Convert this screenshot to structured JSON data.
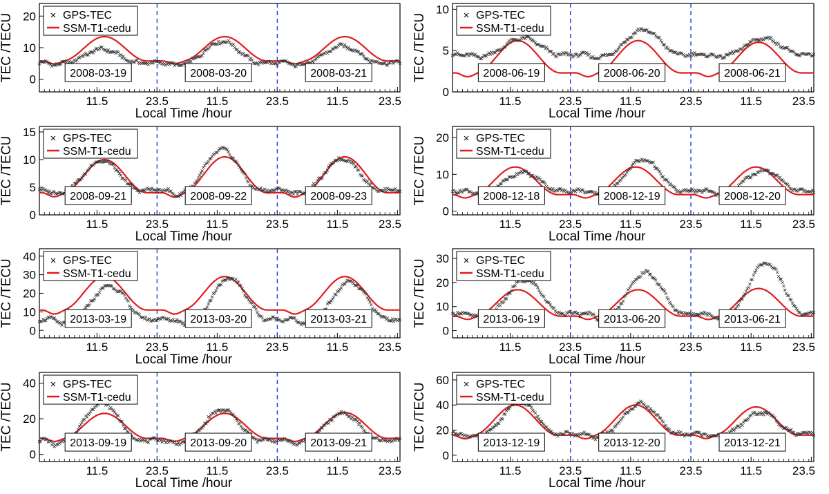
{
  "figure": {
    "series_styles": {
      "gps_color": "#333333",
      "ssm_color": "#e41a1c",
      "divider_color": "#1f3fd6"
    }
  },
  "chart_data": [
    {
      "type": "line",
      "xlabel": "Local Time /hour",
      "ylabel": "TEC /TECU",
      "yticks": [
        0,
        10,
        20
      ],
      "ylim": [
        -4,
        24
      ],
      "xticks": [
        "11.5",
        "23.5",
        "11.5",
        "23.5",
        "11.5",
        "23.5"
      ],
      "xlim": [
        0,
        72
      ],
      "grid": false,
      "legend": "top-left",
      "legend_entries": [
        "GPS-TEC",
        "SSM-T1-cedu"
      ],
      "dates": [
        "2008-03-19",
        "2008-03-20",
        "2008-03-21"
      ],
      "series": [
        {
          "name": "GPS-TEC",
          "kind": "marker-x",
          "base": 5.2,
          "daily_peak": [
            9.5,
            12.0,
            10.5
          ],
          "peak_hour": 12.5
        },
        {
          "name": "SSM-T1-cedu",
          "kind": "line",
          "base": 5.8,
          "daily_peak": [
            13.5,
            13.5,
            13.5
          ],
          "peak_hour": 13.0
        }
      ]
    },
    {
      "type": "line",
      "xlabel": "Local Time /hour",
      "ylabel": "TEC /TECU",
      "yticks": [
        0,
        5,
        10
      ],
      "ylim": [
        0,
        10.7
      ],
      "xticks": [
        "11.5",
        "23.5",
        "11.5",
        "23.5",
        "11.5",
        "23.5"
      ],
      "xlim": [
        0,
        72
      ],
      "grid": false,
      "legend": "top-left",
      "legend_entries": [
        "GPS-TEC",
        "SSM-T1-cedu"
      ],
      "dates": [
        "2008-06-19",
        "2008-06-20",
        "2008-06-21"
      ],
      "series": [
        {
          "name": "GPS-TEC",
          "kind": "marker-x",
          "base": 4.5,
          "daily_peak": [
            6.5,
            7.5,
            6.5
          ],
          "peak_hour": 14.0
        },
        {
          "name": "SSM-T1-cedu",
          "kind": "line",
          "base": 2.3,
          "daily_peak": [
            6.2,
            6.2,
            6.0
          ],
          "peak_hour": 13.0
        }
      ]
    },
    {
      "type": "line",
      "xlabel": "Local Time /hour",
      "ylabel": "TEC /TECU",
      "yticks": [
        0,
        5,
        10,
        15
      ],
      "ylim": [
        0,
        16
      ],
      "xticks": [
        "11.5",
        "23.5",
        "11.5",
        "23.5",
        "11.5",
        "23.5"
      ],
      "xlim": [
        0,
        72
      ],
      "grid": false,
      "legend": "top-left",
      "legend_entries": [
        "GPS-TEC",
        "SSM-T1-cedu"
      ],
      "dates": [
        "2008-09-21",
        "2008-09-22",
        "2008-09-23"
      ],
      "series": [
        {
          "name": "GPS-TEC",
          "kind": "marker-x",
          "base": 4.5,
          "daily_peak": [
            9.8,
            11.8,
            10.2
          ],
          "peak_hour": 12.5
        },
        {
          "name": "SSM-T1-cedu",
          "kind": "line",
          "base": 4.0,
          "daily_peak": [
            10.0,
            10.5,
            10.5
          ],
          "peak_hour": 13.0
        }
      ]
    },
    {
      "type": "line",
      "xlabel": "Local Time /hour",
      "ylabel": "TEC /TECU",
      "yticks": [
        0,
        10,
        20
      ],
      "ylim": [
        -1,
        23
      ],
      "xticks": [
        "11.5",
        "23.5",
        "11.5",
        "23.5",
        "11.5",
        "23.5"
      ],
      "xlim": [
        0,
        72
      ],
      "grid": false,
      "legend": "top-left",
      "legend_entries": [
        "GPS-TEC",
        "SSM-T1-cedu"
      ],
      "dates": [
        "2008-12-18",
        "2008-12-19",
        "2008-12-20"
      ],
      "series": [
        {
          "name": "GPS-TEC",
          "kind": "marker-x",
          "base": 5.5,
          "daily_peak": [
            10.5,
            14.0,
            11.0
          ],
          "peak_hour": 14.0
        },
        {
          "name": "SSM-T1-cedu",
          "kind": "line",
          "base": 4.5,
          "daily_peak": [
            12.0,
            12.0,
            12.0
          ],
          "peak_hour": 12.5
        }
      ]
    },
    {
      "type": "line",
      "xlabel": "Local Time /hour",
      "ylabel": "TEC /TECU",
      "yticks": [
        0,
        10,
        20,
        30,
        40
      ],
      "ylim": [
        -4,
        44
      ],
      "xticks": [
        "11.5",
        "23.5",
        "11.5",
        "23.5",
        "11.5",
        "23.5"
      ],
      "xlim": [
        0,
        72
      ],
      "grid": false,
      "legend": "top-left",
      "legend_entries": [
        "GPS-TEC",
        "SSM-T1-cedu"
      ],
      "dates": [
        "2013-03-19",
        "2013-03-20",
        "2013-03-21"
      ],
      "series": [
        {
          "name": "GPS-TEC",
          "kind": "marker-x",
          "base": 6.0,
          "daily_peak": [
            24.0,
            28.0,
            26.0
          ],
          "peak_hour": 14.0
        },
        {
          "name": "SSM-T1-cedu",
          "kind": "line",
          "base": 11.0,
          "daily_peak": [
            29.0,
            29.0,
            29.0
          ],
          "peak_hour": 13.0
        }
      ]
    },
    {
      "type": "line",
      "xlabel": "Local Time /hour",
      "ylabel": "TEC /TECU",
      "yticks": [
        0,
        10,
        20,
        30
      ],
      "ylim": [
        -3,
        34
      ],
      "xticks": [
        "11.5",
        "23.5",
        "11.5",
        "23.5",
        "11.5",
        "23.5"
      ],
      "xlim": [
        0,
        72
      ],
      "grid": false,
      "legend": "top-left",
      "legend_entries": [
        "GPS-TEC",
        "SSM-T1-cedu"
      ],
      "dates": [
        "2013-06-19",
        "2013-06-20",
        "2013-06-21"
      ],
      "series": [
        {
          "name": "GPS-TEC",
          "kind": "marker-x",
          "base": 7.0,
          "daily_peak": [
            21.0,
            24.0,
            28.0
          ],
          "peak_hour": 14.5
        },
        {
          "name": "SSM-T1-cedu",
          "kind": "line",
          "base": 6.0,
          "daily_peak": [
            17.0,
            17.0,
            17.5
          ],
          "peak_hour": 13.0
        }
      ]
    },
    {
      "type": "line",
      "xlabel": "Local Time /hour",
      "ylabel": "TEC /TECU",
      "yticks": [
        0,
        20,
        40
      ],
      "ylim": [
        -4,
        46
      ],
      "xticks": [
        "11.5",
        "23.5",
        "11.5",
        "23.5",
        "11.5",
        "23.5"
      ],
      "xlim": [
        0,
        72
      ],
      "grid": false,
      "legend": "top-left",
      "legend_entries": [
        "GPS-TEC",
        "SSM-T1-cedu"
      ],
      "dates": [
        "2013-09-19",
        "2013-09-20",
        "2013-09-21"
      ],
      "series": [
        {
          "name": "GPS-TEC",
          "kind": "marker-x",
          "base": 8.0,
          "daily_peak": [
            29.0,
            25.0,
            23.0
          ],
          "peak_hour": 12.5
        },
        {
          "name": "SSM-T1-cedu",
          "kind": "line",
          "base": 9.0,
          "daily_peak": [
            23.0,
            23.0,
            23.5
          ],
          "peak_hour": 13.0
        }
      ]
    },
    {
      "type": "line",
      "xlabel": "Local Time /hour",
      "ylabel": "TEC /TECU",
      "yticks": [
        0,
        20,
        40,
        60
      ],
      "ylim": [
        -5,
        66
      ],
      "xticks": [
        "11.5",
        "23.5",
        "11.5",
        "23.5",
        "11.5",
        "23.5"
      ],
      "xlim": [
        0,
        72
      ],
      "grid": false,
      "legend": "top-left",
      "legend_entries": [
        "GPS-TEC",
        "SSM-T1-cedu"
      ],
      "dates": [
        "2013-12-19",
        "2013-12-20",
        "2013-12-21"
      ],
      "series": [
        {
          "name": "GPS-TEC",
          "kind": "marker-x",
          "base": 17.0,
          "daily_peak": [
            42.0,
            41.0,
            34.0
          ],
          "peak_hour": 13.5
        },
        {
          "name": "SSM-T1-cedu",
          "kind": "line",
          "base": 16.0,
          "daily_peak": [
            40.0,
            40.0,
            38.5
          ],
          "peak_hour": 12.5
        }
      ]
    }
  ]
}
